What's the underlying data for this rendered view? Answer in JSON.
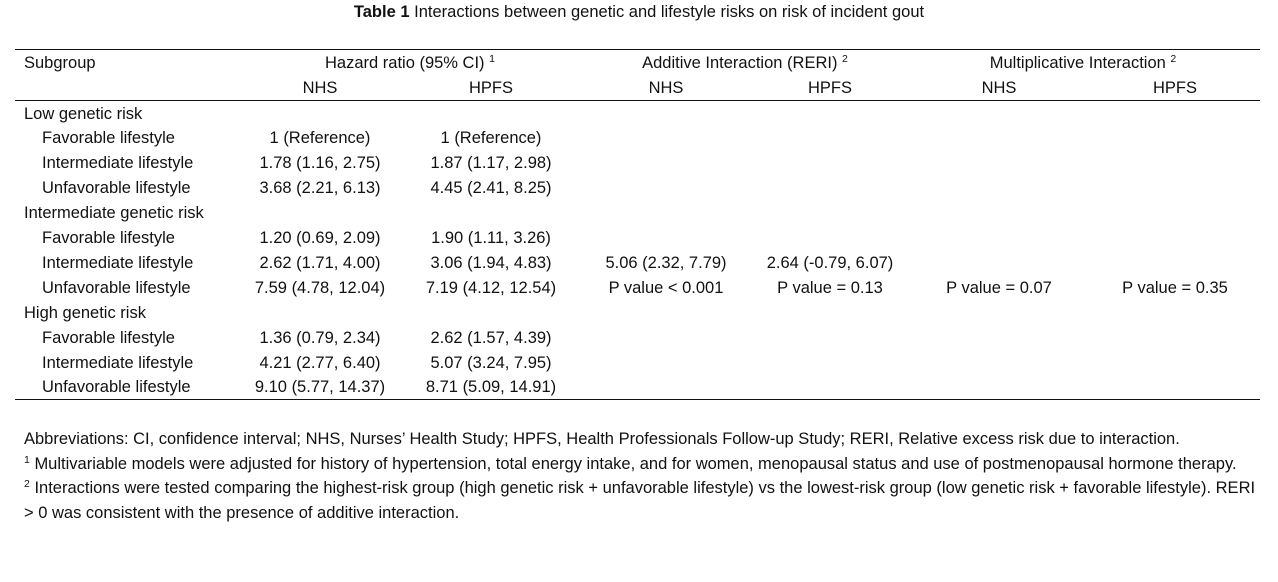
{
  "title": {
    "label": "Table 1",
    "text": "Interactions between genetic and lifestyle risks on risk of incident gout"
  },
  "header": {
    "subgroup": "Subgroup",
    "hr": "Hazard ratio (95% CI)",
    "hr_sup": "1",
    "add": "Additive Interaction (RERI)",
    "add_sup": "2",
    "mult": "Multiplicative Interaction",
    "mult_sup": "2",
    "nhs1": "NHS",
    "hpfs1": "HPFS",
    "nhs2": "NHS",
    "hpfs2": "HPFS",
    "nhs3": "NHS",
    "hpfs3": "HPFS"
  },
  "groups": [
    {
      "label": "Low genetic risk",
      "rows": [
        {
          "label": "Favorable lifestyle",
          "nhs": "1 (Reference)",
          "hpfs": "1 (Reference)"
        },
        {
          "label": "Intermediate lifestyle",
          "nhs": "1.78 (1.16, 2.75)",
          "hpfs": "1.87 (1.17, 2.98)"
        },
        {
          "label": "Unfavorable lifestyle",
          "nhs": "3.68 (2.21, 6.13)",
          "hpfs": "4.45 (2.41, 8.25)"
        }
      ]
    },
    {
      "label": "Intermediate genetic risk",
      "rows": [
        {
          "label": "Favorable lifestyle",
          "nhs": "1.20 (0.69, 2.09)",
          "hpfs": "1.90 (1.11, 3.26)"
        },
        {
          "label": "Intermediate lifestyle",
          "nhs": "2.62 (1.71, 4.00)",
          "hpfs": "3.06 (1.94, 4.83)"
        },
        {
          "label": "Unfavorable lifestyle",
          "nhs": "7.59 (4.78, 12.04)",
          "hpfs": "7.19 (4.12, 12.54)"
        }
      ]
    },
    {
      "label": "High genetic risk",
      "rows": [
        {
          "label": "Favorable lifestyle",
          "nhs": "1.36 (0.79, 2.34)",
          "hpfs": "2.62 (1.57, 4.39)"
        },
        {
          "label": "Intermediate lifestyle",
          "nhs": "4.21 (2.77, 6.40)",
          "hpfs": "5.07 (3.24, 7.95)"
        },
        {
          "label": "Unfavorable lifestyle",
          "nhs": "9.10 (5.77, 14.37)",
          "hpfs": "8.71 (5.09, 14.91)"
        }
      ]
    }
  ],
  "interaction": {
    "reri_nhs": "5.06 (2.32, 7.79)",
    "reri_hpfs": "2.64 (-0.79, 6.07)",
    "add_p_nhs": "P value < 0.001",
    "add_p_hpfs": "P value = 0.13",
    "mult_p_nhs": "P value = 0.07",
    "mult_p_hpfs": "P value = 0.35"
  },
  "footnotes": {
    "abbrev": "Abbreviations: CI, confidence interval; NHS, Nurses’ Health Study; HPFS, Health Professionals Follow-up Study; RERI, Relative excess risk due to interaction.",
    "note1_mark": "1",
    "note1": "Multivariable models were adjusted for history of hypertension, total energy intake, and for women, menopausal status and use of postmenopausal hormone therapy.",
    "note2_mark": "2",
    "note2": "Interactions were tested comparing the highest-risk group (high genetic risk + unfavorable lifestyle) vs the lowest-risk group (low genetic risk + favorable lifestyle). RERI > 0 was consistent with the presence of additive interaction."
  }
}
